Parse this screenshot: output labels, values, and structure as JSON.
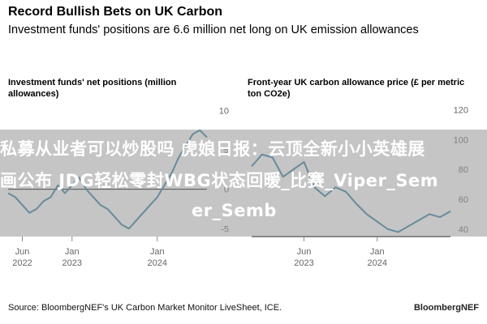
{
  "header": {
    "title": "Record Bullish Bets on UK Carbon",
    "subtitle": "Investment funds' positions are 6.6 million net long on UK emission allowances"
  },
  "footer": {
    "source": "Source: BloombergNEF's UK Carbon Market Monitor LiveSheet, ICE.",
    "brand": "BloombergNEF"
  },
  "overlay": {
    "line1": "私募从业者可以炒股吗 虎娘日报：云顶全新小小英雄展",
    "line2": "画公布 JDG轻松零封WBG状态回暖_比赛_Viper_Sem",
    "line3": "er_Semb"
  },
  "colors": {
    "line": "#2f7fa3",
    "zero_line": "#000000",
    "tick": "#666666"
  },
  "chart_data": [
    {
      "type": "line",
      "title": "Investment funds' net positions (million allowances)",
      "x_ticks": [
        "Jun 2022",
        "Jan 2023",
        "Jan 2024"
      ],
      "y_ticks": [
        10,
        5,
        0,
        -5
      ],
      "ylim": [
        -6,
        12
      ],
      "xlim": [
        "2022-04",
        "2024-08"
      ],
      "series": [
        {
          "x": [
            "2022-04",
            "2022-05",
            "2022-06",
            "2022-07",
            "2022-08",
            "2022-09",
            "2022-10",
            "2022-11",
            "2022-12",
            "2023-01",
            "2023-02",
            "2023-03",
            "2023-04",
            "2023-05",
            "2023-06",
            "2023-07",
            "2023-08",
            "2023-09",
            "2023-10",
            "2023-11",
            "2023-12",
            "2024-01",
            "2024-02",
            "2024-03",
            "2024-04",
            "2024-05",
            "2024-06",
            "2024-07",
            "2024-08"
          ],
          "y": [
            -0.5,
            -1.0,
            -2.0,
            -3.0,
            -2.5,
            -1.5,
            -1.0,
            0.5,
            -0.5,
            0.5,
            1.5,
            0.0,
            -1.0,
            -2.0,
            -2.5,
            -3.5,
            -4.5,
            -5.0,
            -4.0,
            -3.0,
            -2.0,
            -1.0,
            0.5,
            2.0,
            4.0,
            5.5,
            7.0,
            7.5,
            6.6
          ]
        }
      ]
    },
    {
      "type": "line",
      "title": "Front-year UK carbon allowance price (£ per metric ton CO2e)",
      "x_ticks": [
        "Jun 2023",
        "Jan 2024"
      ],
      "y_ticks": [
        120,
        100,
        80,
        60,
        40
      ],
      "ylim": [
        35,
        130
      ],
      "xlim": [
        "2023-01",
        "2024-08"
      ],
      "series": [
        {
          "x": [
            "2023-01",
            "2023-02",
            "2023-03",
            "2023-04",
            "2023-05",
            "2023-06",
            "2023-07",
            "2023-08",
            "2023-09",
            "2023-10",
            "2023-11",
            "2023-12",
            "2024-01",
            "2024-02",
            "2024-03",
            "2024-04",
            "2024-05",
            "2024-06",
            "2024-07",
            "2024-08"
          ],
          "y": [
            82,
            90,
            88,
            75,
            80,
            85,
            68,
            62,
            68,
            65,
            57,
            50,
            45,
            40,
            38,
            42,
            46,
            50,
            48,
            52
          ]
        }
      ]
    }
  ]
}
